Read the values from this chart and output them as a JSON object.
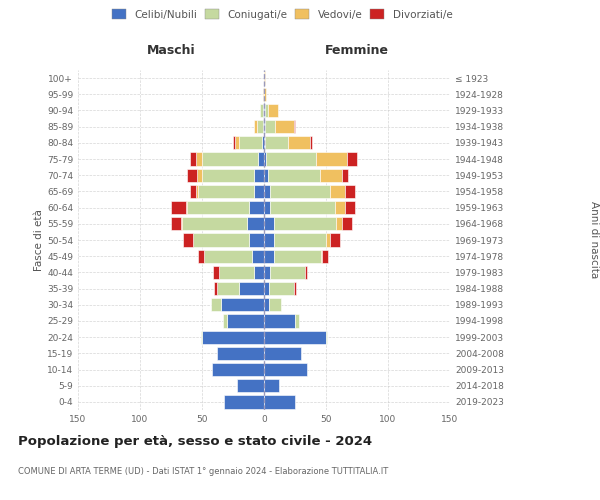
{
  "age_groups": [
    "0-4",
    "5-9",
    "10-14",
    "15-19",
    "20-24",
    "25-29",
    "30-34",
    "35-39",
    "40-44",
    "45-49",
    "50-54",
    "55-59",
    "60-64",
    "65-69",
    "70-74",
    "75-79",
    "80-84",
    "85-89",
    "90-94",
    "95-99",
    "100+"
  ],
  "birth_years": [
    "2019-2023",
    "2014-2018",
    "2009-2013",
    "2004-2008",
    "1999-2003",
    "1994-1998",
    "1989-1993",
    "1984-1988",
    "1979-1983",
    "1974-1978",
    "1969-1973",
    "1964-1968",
    "1959-1963",
    "1954-1958",
    "1949-1953",
    "1944-1948",
    "1939-1943",
    "1934-1938",
    "1929-1933",
    "1924-1928",
    "≤ 1923"
  ],
  "colors": {
    "celibi": "#4472c4",
    "coniugati": "#c5d9a0",
    "vedovi": "#f0c060",
    "divorziati": "#cc2222",
    "background": "#ffffff",
    "grid": "#cccccc",
    "dashed_line": "#9999bb"
  },
  "legend_labels": [
    "Celibi/Nubili",
    "Coniugati/e",
    "Vedovi/e",
    "Divorziati/e"
  ],
  "title": "Popolazione per età, sesso e stato civile - 2024",
  "subtitle": "COMUNE DI ARTA TERME (UD) - Dati ISTAT 1° gennaio 2024 - Elaborazione TUTTITALIA.IT",
  "label_maschi": "Maschi",
  "label_femmine": "Femmine",
  "label_fasce": "Fasce di età",
  "label_anni": "Anni di nascita",
  "xlim": 150,
  "maschi": {
    "celibi": [
      32,
      22,
      42,
      38,
      50,
      30,
      35,
      20,
      8,
      10,
      12,
      14,
      12,
      8,
      8,
      5,
      2,
      1,
      1,
      0,
      0
    ],
    "coniugati": [
      0,
      0,
      0,
      0,
      1,
      3,
      8,
      18,
      28,
      38,
      45,
      52,
      50,
      45,
      42,
      45,
      18,
      5,
      2,
      0,
      0
    ],
    "vedovi": [
      0,
      0,
      0,
      0,
      0,
      0,
      0,
      0,
      0,
      0,
      0,
      1,
      1,
      2,
      4,
      5,
      3,
      2,
      0,
      1,
      0
    ],
    "divorziati": [
      0,
      0,
      0,
      0,
      0,
      0,
      0,
      2,
      5,
      5,
      8,
      8,
      12,
      5,
      8,
      5,
      2,
      0,
      0,
      0,
      0
    ]
  },
  "femmine": {
    "nubili": [
      25,
      12,
      35,
      30,
      50,
      25,
      4,
      4,
      5,
      8,
      8,
      8,
      5,
      5,
      3,
      2,
      1,
      1,
      1,
      0,
      0
    ],
    "coniugati": [
      0,
      0,
      0,
      0,
      1,
      3,
      10,
      20,
      28,
      38,
      42,
      50,
      52,
      48,
      42,
      40,
      18,
      8,
      2,
      0,
      0
    ],
    "vedovi": [
      0,
      0,
      0,
      0,
      0,
      0,
      0,
      0,
      0,
      1,
      3,
      5,
      8,
      12,
      18,
      25,
      18,
      15,
      8,
      2,
      1
    ],
    "divorziati": [
      0,
      0,
      0,
      0,
      0,
      0,
      0,
      2,
      2,
      5,
      8,
      8,
      8,
      8,
      5,
      8,
      2,
      1,
      0,
      0,
      0
    ]
  }
}
